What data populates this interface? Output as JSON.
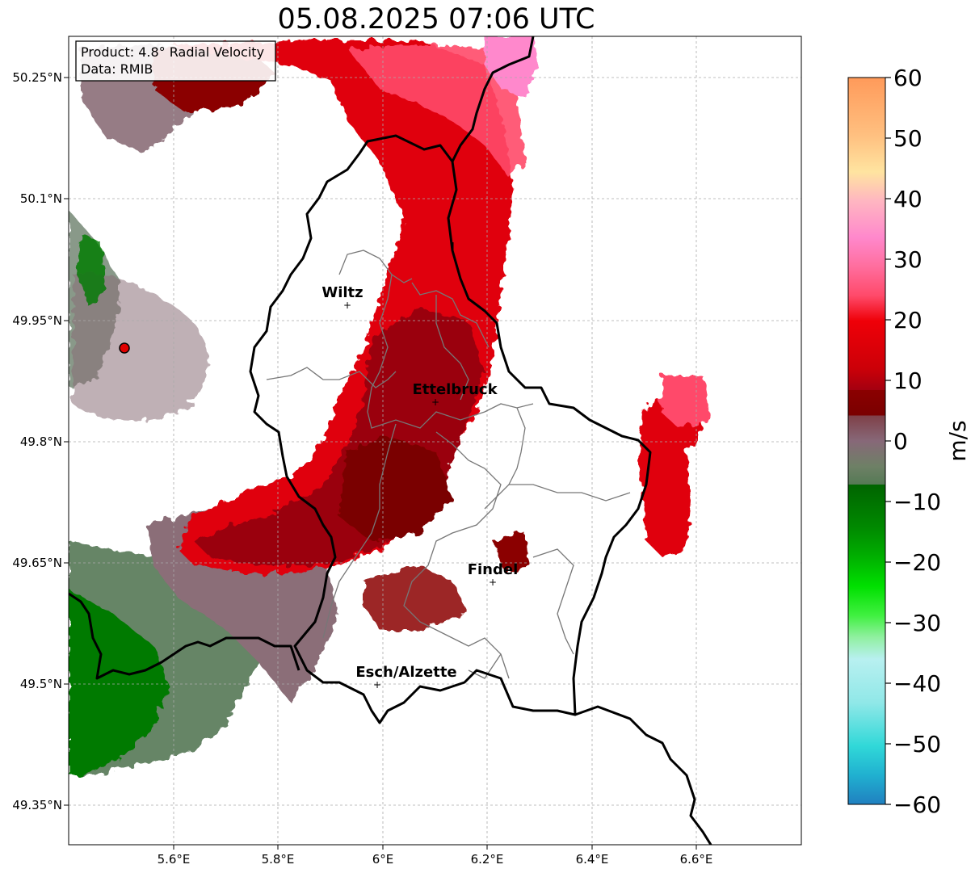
{
  "title": "05.08.2025 07:06 UTC",
  "info_box": {
    "product": "Product: 4.8° Radial Velocity",
    "data": "Data: RMIB"
  },
  "axes": {
    "lon_ticks": [
      "5.6°E",
      "5.8°E",
      "6°E",
      "6.2°E",
      "6.4°E",
      "6.6°E"
    ],
    "lat_ticks": [
      "50.25°N",
      "50.1°N",
      "49.95°N",
      "49.8°N",
      "49.65°N",
      "49.5°N",
      "49.35°N"
    ],
    "grid": true
  },
  "cities": [
    {
      "name": "Wiltz"
    },
    {
      "name": "Ettelbruck"
    },
    {
      "name": "Findel"
    },
    {
      "name": "Esch/Alzette"
    }
  ],
  "colorbar": {
    "label": "m/s",
    "ticks": [
      "60",
      "50",
      "40",
      "30",
      "20",
      "10",
      "0",
      "−10",
      "−20",
      "−30",
      "−40",
      "−50",
      "−60"
    ],
    "min": -60,
    "max": 60
  },
  "colors": {
    "strong_outbound": "#e8000b",
    "weak_outbound": "#8b0000",
    "near_zero": "#8b6e78",
    "weak_inbound": "#5e7e5e",
    "strong_inbound": "#007a00",
    "pink": "#ff7fbf",
    "radar_marker": "#e00000"
  }
}
